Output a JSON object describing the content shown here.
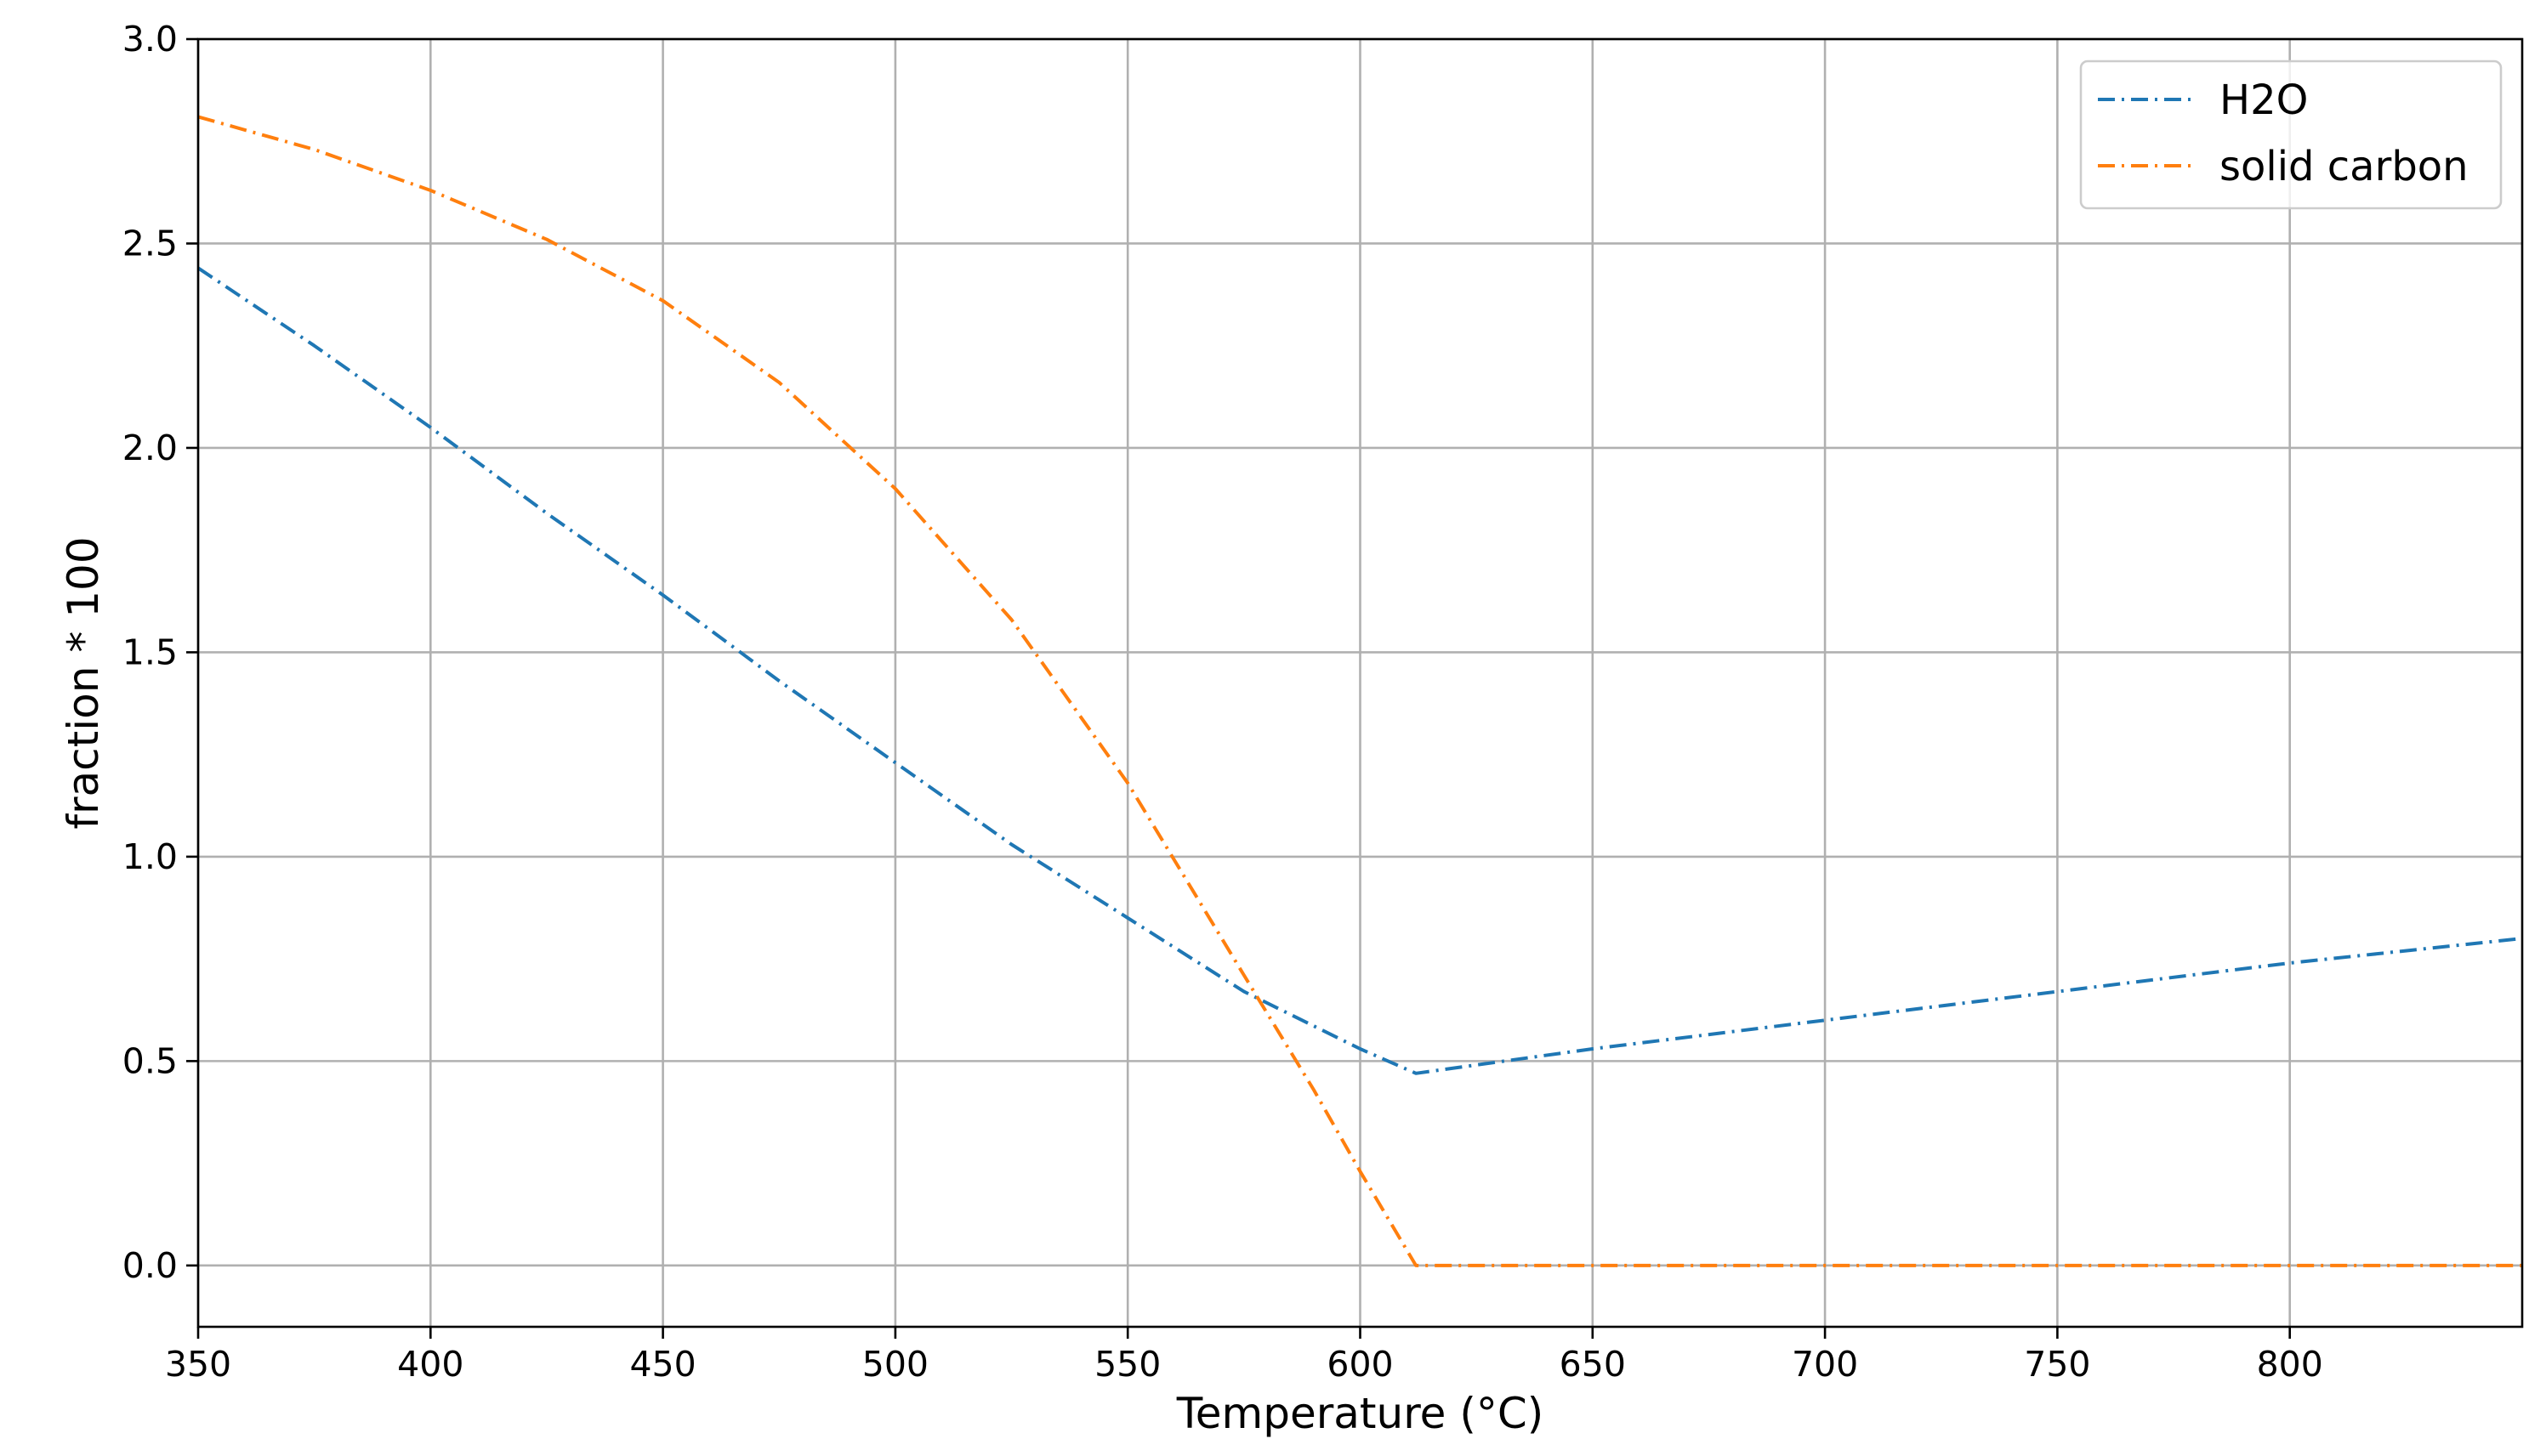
{
  "chart_data": {
    "type": "line",
    "xlabel": "Temperature (°C)",
    "ylabel": "fraction * 100",
    "xlim": [
      350,
      850
    ],
    "ylim": [
      -0.15,
      3.0
    ],
    "xticks": [
      350,
      400,
      450,
      500,
      550,
      600,
      650,
      700,
      750,
      800
    ],
    "xtick_labels": [
      "350",
      "400",
      "450",
      "500",
      "550",
      "600",
      "650",
      "700",
      "750",
      "800"
    ],
    "yticks": [
      0.0,
      0.5,
      1.0,
      1.5,
      2.0,
      2.5,
      3.0
    ],
    "ytick_labels": [
      "0.0",
      "0.5",
      "1.0",
      "1.5",
      "2.0",
      "2.5",
      "3.0"
    ],
    "grid": true,
    "legend_position": "top-right",
    "series": [
      {
        "name": "H2O",
        "color": "#1f77b4",
        "line_style": "dash-dot",
        "x": [
          350,
          375,
          400,
          425,
          450,
          475,
          500,
          525,
          550,
          575,
          600,
          612,
          650,
          700,
          750,
          800,
          850
        ],
        "y": [
          2.44,
          2.25,
          2.05,
          1.84,
          1.64,
          1.43,
          1.23,
          1.03,
          0.85,
          0.67,
          0.53,
          0.47,
          0.53,
          0.6,
          0.67,
          0.74,
          0.8
        ]
      },
      {
        "name": "solid carbon",
        "color": "#ff7f0e",
        "line_style": "dash-dot",
        "x": [
          350,
          375,
          400,
          425,
          450,
          475,
          500,
          525,
          550,
          575,
          590,
          600,
          612,
          650,
          700,
          750,
          800,
          850
        ],
        "y": [
          2.81,
          2.73,
          2.63,
          2.51,
          2.36,
          2.16,
          1.9,
          1.58,
          1.18,
          0.71,
          0.43,
          0.23,
          0.0,
          0.0,
          0.0,
          0.0,
          0.0,
          0.0
        ]
      }
    ]
  }
}
